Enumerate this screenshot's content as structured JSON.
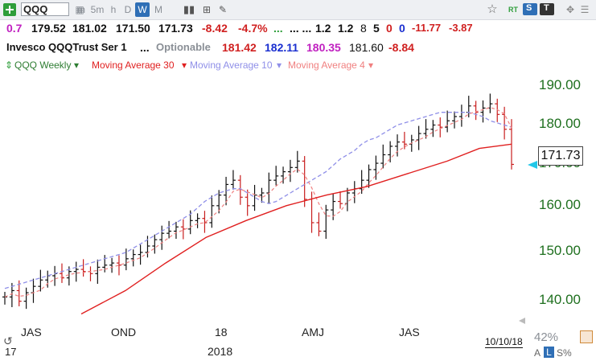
{
  "toolbar": {
    "symbol": "QQQ",
    "timeframes": [
      "m",
      "5m",
      "h",
      "D",
      "W",
      "M"
    ],
    "active_timeframe": "W",
    "icons": [
      "plus-icon",
      "bar-chart-icon",
      "add-chart-icon",
      "pencil-icon",
      "star-icon",
      "rt-icon",
      "s-dropdown-icon",
      "t-dropdown-icon",
      "move-icon",
      "menu-icon"
    ],
    "rt_label": "RT",
    "s_label": "S",
    "t_label": "T"
  },
  "quote": {
    "change_label": "0.7",
    "open": "179.52",
    "high": "181.02",
    "low": "171.50",
    "close": "171.73",
    "change": "-8.42",
    "change_pct": "-4.7%",
    "dots": "...",
    "dots2": "... ...",
    "v1": "1.2",
    "v2": "1.2",
    "n1": "8",
    "n2": "5",
    "n3": "0",
    "n4": "0",
    "c1": "-11.77",
    "c2": "-3.87"
  },
  "info": {
    "name": "Invesco QQQTrust Ser 1",
    "dots": "...",
    "optionable": "Optionable",
    "p1": "181.42",
    "p2": "182.11",
    "p3": "180.35",
    "p4": "181.60",
    "p5": "-8.84"
  },
  "legend": {
    "symbol": "QQQ Weekly",
    "ma30": "Moving Average 30",
    "ma10": "Moving Average 10",
    "ma4": "Moving Average 4",
    "colors": {
      "ma30": "#e02020",
      "ma10": "#8f8fe8",
      "ma4": "#f08080",
      "price": "#111111",
      "axis": "#1e6f1e"
    }
  },
  "chart_data": {
    "type": "line",
    "title": "",
    "ylim": [
      135,
      195
    ],
    "y_ticks": [
      "190.00",
      "180.00",
      "170.00",
      "160.00",
      "150.00",
      "140.00"
    ],
    "x_tick_labels": [
      "JAS",
      "OND",
      "18",
      "AMJ",
      "JAS"
    ],
    "year_labels": [
      "17",
      "2018"
    ],
    "last_price": "171.73",
    "bars_close": [
      140.5,
      142.0,
      139.5,
      141.5,
      143.0,
      144.5,
      145.5,
      146.0,
      145.0,
      146.5,
      147.0,
      146.5,
      146.0,
      147.5,
      148.0,
      148.5,
      148.0,
      149.5,
      150.5,
      151.0,
      152.5,
      154.0,
      155.5,
      156.0,
      157.0,
      156.5,
      158.5,
      159.0,
      158.0,
      162.0,
      164.5,
      167.0,
      168.0,
      164.0,
      162.0,
      164.5,
      165.0,
      168.0,
      169.0,
      170.0,
      171.0,
      172.5,
      163.5,
      158.0,
      156.0,
      161.0,
      163.0,
      162.5,
      165.0,
      166.0,
      168.0,
      170.5,
      172.0,
      174.0,
      176.0,
      177.0,
      176.5,
      177.5,
      179.0,
      180.0,
      181.0,
      180.5,
      182.0,
      183.0,
      184.0,
      185.5,
      184.0,
      185.0,
      186.0,
      183.5,
      180.0,
      171.73
    ],
    "ma30": [
      {
        "i": 19,
        "v": 136.5
      },
      {
        "i": 30,
        "v": 142.0
      },
      {
        "i": 40,
        "v": 148.5
      },
      {
        "i": 50,
        "v": 154.5
      },
      {
        "i": 60,
        "v": 158.5
      },
      {
        "i": 70,
        "v": 162.0
      },
      {
        "i": 80,
        "v": 164.5
      },
      {
        "i": 90,
        "v": 166.5
      },
      {
        "i": 100,
        "v": 169.5
      },
      {
        "i": 110,
        "v": 172.5
      },
      {
        "i": 118,
        "v": 175.5
      },
      {
        "i": 126,
        "v": 176.5
      }
    ],
    "ma10_note": "",
    "ma10": [
      142.5,
      143.0,
      143.5,
      144.0,
      144.5,
      145.0,
      145.5,
      146.0,
      146.5,
      147.0,
      147.5,
      148.0,
      148.5,
      149.0,
      149.5,
      150.0,
      150.5,
      151.0,
      152.0,
      153.0,
      154.0,
      155.0,
      156.0,
      157.0,
      158.0,
      159.0,
      160.0,
      161.5,
      163.0,
      164.0,
      165.0,
      165.5,
      166.0,
      166.0,
      165.0,
      164.0,
      163.0,
      162.5,
      163.0,
      164.0,
      165.0,
      166.0,
      167.0,
      168.0,
      169.0,
      170.0,
      171.5,
      173.0,
      174.0,
      175.0,
      176.5,
      177.5,
      178.0,
      179.0,
      180.0,
      181.0,
      181.5,
      182.0,
      182.5,
      183.0,
      183.5,
      184.0,
      184.0,
      184.0,
      184.0,
      184.0,
      183.5,
      183.0,
      182.0,
      181.5,
      181.0,
      180.5
    ]
  },
  "footer": {
    "date": "10/10/18",
    "zoom": "42%",
    "buttons": [
      "A",
      "L",
      "S%"
    ]
  }
}
